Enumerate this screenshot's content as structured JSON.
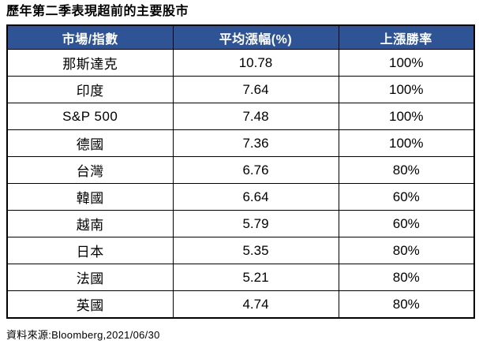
{
  "title": "歷年第二季表現超前的主要股市",
  "footer": "資料來源:Bloomberg,2021/06/30",
  "colors": {
    "header_bg": "#2F5496",
    "header_text": "#FFFFFF",
    "border": "#000000",
    "body_bg": "#FFFFFF",
    "text": "#000000"
  },
  "chart_data": {
    "type": "table",
    "title": "歷年第二季表現超前的主要股市",
    "columns": [
      "市場/指數",
      "平均漲幅(%)",
      "上漲勝率"
    ],
    "rows": [
      {
        "market": "那斯達克",
        "avg_gain_pct": "10.78",
        "win_rate": "100%"
      },
      {
        "market": "印度",
        "avg_gain_pct": "7.64",
        "win_rate": "100%"
      },
      {
        "market": "S&P 500",
        "avg_gain_pct": "7.48",
        "win_rate": "100%"
      },
      {
        "market": "德國",
        "avg_gain_pct": "7.36",
        "win_rate": "100%"
      },
      {
        "market": "台灣",
        "avg_gain_pct": "6.76",
        "win_rate": "80%"
      },
      {
        "market": "韓國",
        "avg_gain_pct": "6.64",
        "win_rate": "60%"
      },
      {
        "market": "越南",
        "avg_gain_pct": "5.79",
        "win_rate": "60%"
      },
      {
        "market": "日本",
        "avg_gain_pct": "5.35",
        "win_rate": "80%"
      },
      {
        "market": "法國",
        "avg_gain_pct": "5.21",
        "win_rate": "80%"
      },
      {
        "market": "英國",
        "avg_gain_pct": "4.74",
        "win_rate": "80%"
      }
    ],
    "source": "Bloomberg,2021/06/30"
  }
}
